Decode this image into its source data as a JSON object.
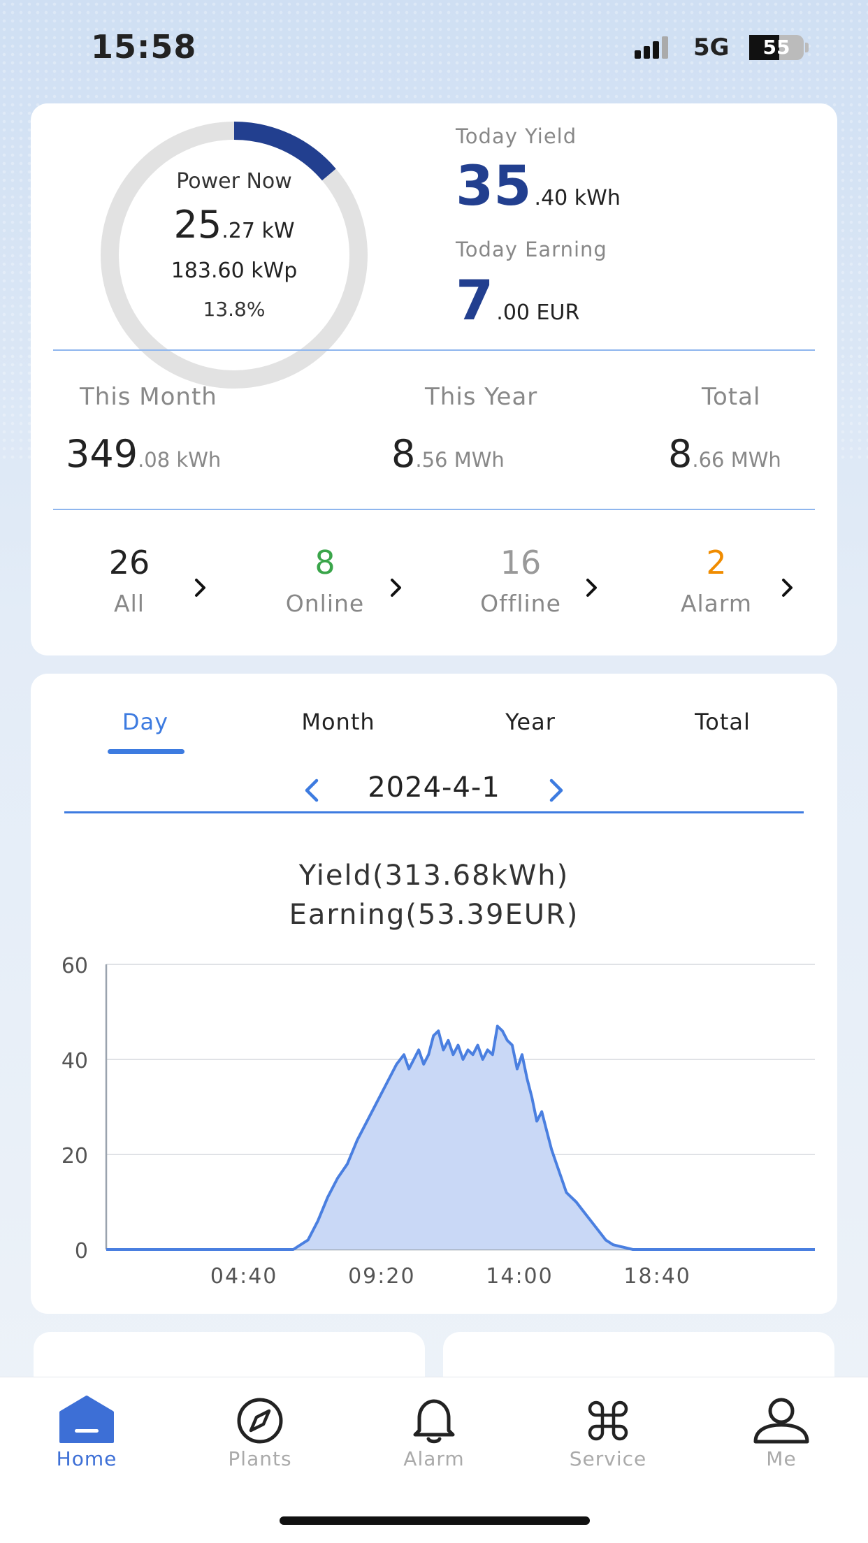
{
  "status_bar": {
    "time": "15:58",
    "network": "5G",
    "battery_text": "55",
    "battery_level": 0.55
  },
  "summary": {
    "power_now": {
      "label": "Power Now",
      "value_int": "25",
      "value_dec": ".27 kW",
      "capacity": "183.60 kWp",
      "percent": "13.8%",
      "gauge_fraction": 0.138
    },
    "today_yield": {
      "label": "Today Yield",
      "value_int": "35",
      "value_dec": ".40 kWh"
    },
    "today_earning": {
      "label": "Today Earning",
      "value_int": "7",
      "value_dec": ".00 EUR"
    },
    "this_month": {
      "label": "This Month",
      "value_int": "349",
      "value_dec": ".08 kWh"
    },
    "this_year": {
      "label": "This Year",
      "value_int": "8",
      "value_dec": ".56 MWh"
    },
    "total": {
      "label": "Total",
      "value_int": "8",
      "value_dec": ".66 MWh"
    },
    "counters": [
      {
        "count": "26",
        "label": "All",
        "color": "#222222"
      },
      {
        "count": "8",
        "label": "Online",
        "color": "#3aa54a"
      },
      {
        "count": "16",
        "label": "Offline",
        "color": "#999999"
      },
      {
        "count": "2",
        "label": "Alarm",
        "color": "#f08c00"
      }
    ]
  },
  "chart_card": {
    "tabs": [
      "Day",
      "Month",
      "Year",
      "Total"
    ],
    "active_tab": "Day",
    "date": "2024-4-1",
    "title_line1": "Yield(313.68kWh)",
    "title_line2": "Earning(53.39EUR)"
  },
  "chart_data": {
    "type": "area",
    "title": "Yield(313.68kWh) Earning(53.39EUR)",
    "xlabel": "",
    "ylabel": "",
    "x_ticks": [
      "04:40",
      "09:20",
      "14:00",
      "18:40"
    ],
    "y_ticks": [
      0,
      20,
      40,
      60
    ],
    "ylim": [
      0,
      60
    ],
    "xlim_minutes": [
      0,
      1440
    ],
    "grid": true,
    "legend": "none",
    "color": "#4a7fe0",
    "fill": "#c9d8f6",
    "series": [
      {
        "x": [
          "00:00",
          "06:20",
          "06:50",
          "07:10",
          "07:30",
          "07:50",
          "08:10",
          "08:30",
          "08:50",
          "09:10",
          "09:30",
          "09:50",
          "10:05",
          "10:15",
          "10:25",
          "10:35",
          "10:45",
          "10:55",
          "11:05",
          "11:15",
          "11:25",
          "11:35",
          "11:45",
          "11:55",
          "12:05",
          "12:15",
          "12:25",
          "12:35",
          "12:45",
          "12:55",
          "13:05",
          "13:15",
          "13:25",
          "13:35",
          "13:45",
          "13:55",
          "14:05",
          "14:15",
          "14:25",
          "14:35",
          "14:45",
          "14:55",
          "15:05",
          "15:15",
          "15:25",
          "15:35",
          "15:45",
          "15:55",
          "16:10",
          "16:25",
          "16:40",
          "16:55",
          "17:10",
          "17:30",
          "17:50",
          "18:10",
          "18:30",
          "18:50",
          "24:00"
        ],
        "values": [
          0,
          0,
          2,
          6,
          11,
          15,
          18,
          23,
          27,
          31,
          35,
          39,
          41,
          38,
          40,
          42,
          39,
          41,
          45,
          46,
          42,
          44,
          41,
          43,
          40,
          42,
          41,
          43,
          40,
          42,
          41,
          47,
          46,
          44,
          43,
          38,
          41,
          36,
          32,
          27,
          29,
          25,
          21,
          18,
          15,
          12,
          11,
          10,
          8,
          6,
          4,
          2,
          1,
          0.5,
          0,
          0,
          0,
          0,
          0
        ]
      }
    ]
  },
  "peek_cards": [
    {},
    {}
  ],
  "tab_bar": {
    "items": [
      {
        "label": "Home",
        "icon": "home-icon"
      },
      {
        "label": "Plants",
        "icon": "compass-icon"
      },
      {
        "label": "Alarm",
        "icon": "bell-icon"
      },
      {
        "label": "Service",
        "icon": "command-icon"
      },
      {
        "label": "Me",
        "icon": "person-icon"
      }
    ],
    "active": "Home",
    "active_color": "#3d6fd6",
    "inactive_color": "#aaaaaa"
  }
}
